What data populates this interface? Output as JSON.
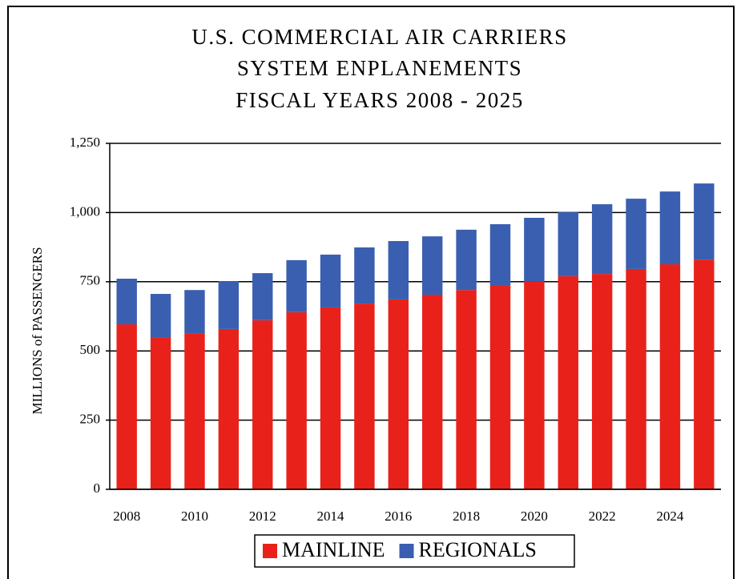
{
  "chart_data": {
    "type": "stacked-bar",
    "title": [
      "U.S. COMMERCIAL AIR CARRIERS",
      "SYSTEM ENPLANEMENTS",
      "FISCAL YEARS 2008 - 2025"
    ],
    "y_label": "MILLIONS of PASSENGERS",
    "categories": [
      "2008",
      null,
      "2010",
      null,
      "2012",
      null,
      "2014",
      null,
      "2016",
      null,
      "2018",
      null,
      "2020",
      null,
      "2022",
      null,
      "2024",
      null
    ],
    "series": [
      {
        "name": "MAINLINE",
        "color": "#e8221b",
        "values": [
          596,
          547,
          564,
          579,
          611,
          640,
          657,
          671,
          686,
          703,
          720,
          735,
          752,
          770,
          778,
          796,
          813,
          830
        ]
      },
      {
        "name": "REGIONALS",
        "color": "#3a5fb0",
        "values": [
          165,
          159,
          156,
          173,
          170,
          188,
          191,
          203,
          211,
          211,
          218,
          223,
          229,
          231,
          252,
          254,
          263,
          275
        ]
      }
    ],
    "ylim": [
      0,
      1250
    ],
    "yticks": [
      0,
      250,
      500,
      750,
      {
        "value": 1000,
        "label": "1,000"
      },
      {
        "value": 1250,
        "label": "1,250"
      }
    ],
    "grid": true
  }
}
